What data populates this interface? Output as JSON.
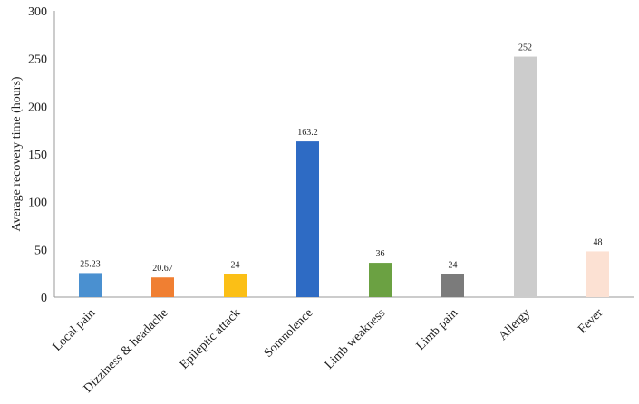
{
  "chart_data": {
    "type": "bar",
    "title": "",
    "xlabel": "",
    "ylabel": "Average recovery time (hours)",
    "categories": [
      "Local pain",
      "Dizziness & headache",
      "Epileptic attack",
      "Somnolence",
      "Limb weakness",
      "Limb pain",
      "Allergy",
      "Fever"
    ],
    "values": [
      25.23,
      20.67,
      24,
      163.2,
      36,
      24,
      252,
      48
    ],
    "data_labels": [
      "25.23",
      "20.67",
      "24",
      "163.2",
      "36",
      "24",
      "252",
      "48"
    ],
    "colors": [
      "#4a90d0",
      "#f07f32",
      "#fbbf16",
      "#2e6bc4",
      "#6ba142",
      "#7b7b7b",
      "#cccccc",
      "#fce1d3"
    ],
    "ylim": [
      0,
      300
    ],
    "yticks": [
      0,
      50,
      100,
      150,
      200,
      250,
      300
    ],
    "grid": false,
    "legend": "none"
  }
}
